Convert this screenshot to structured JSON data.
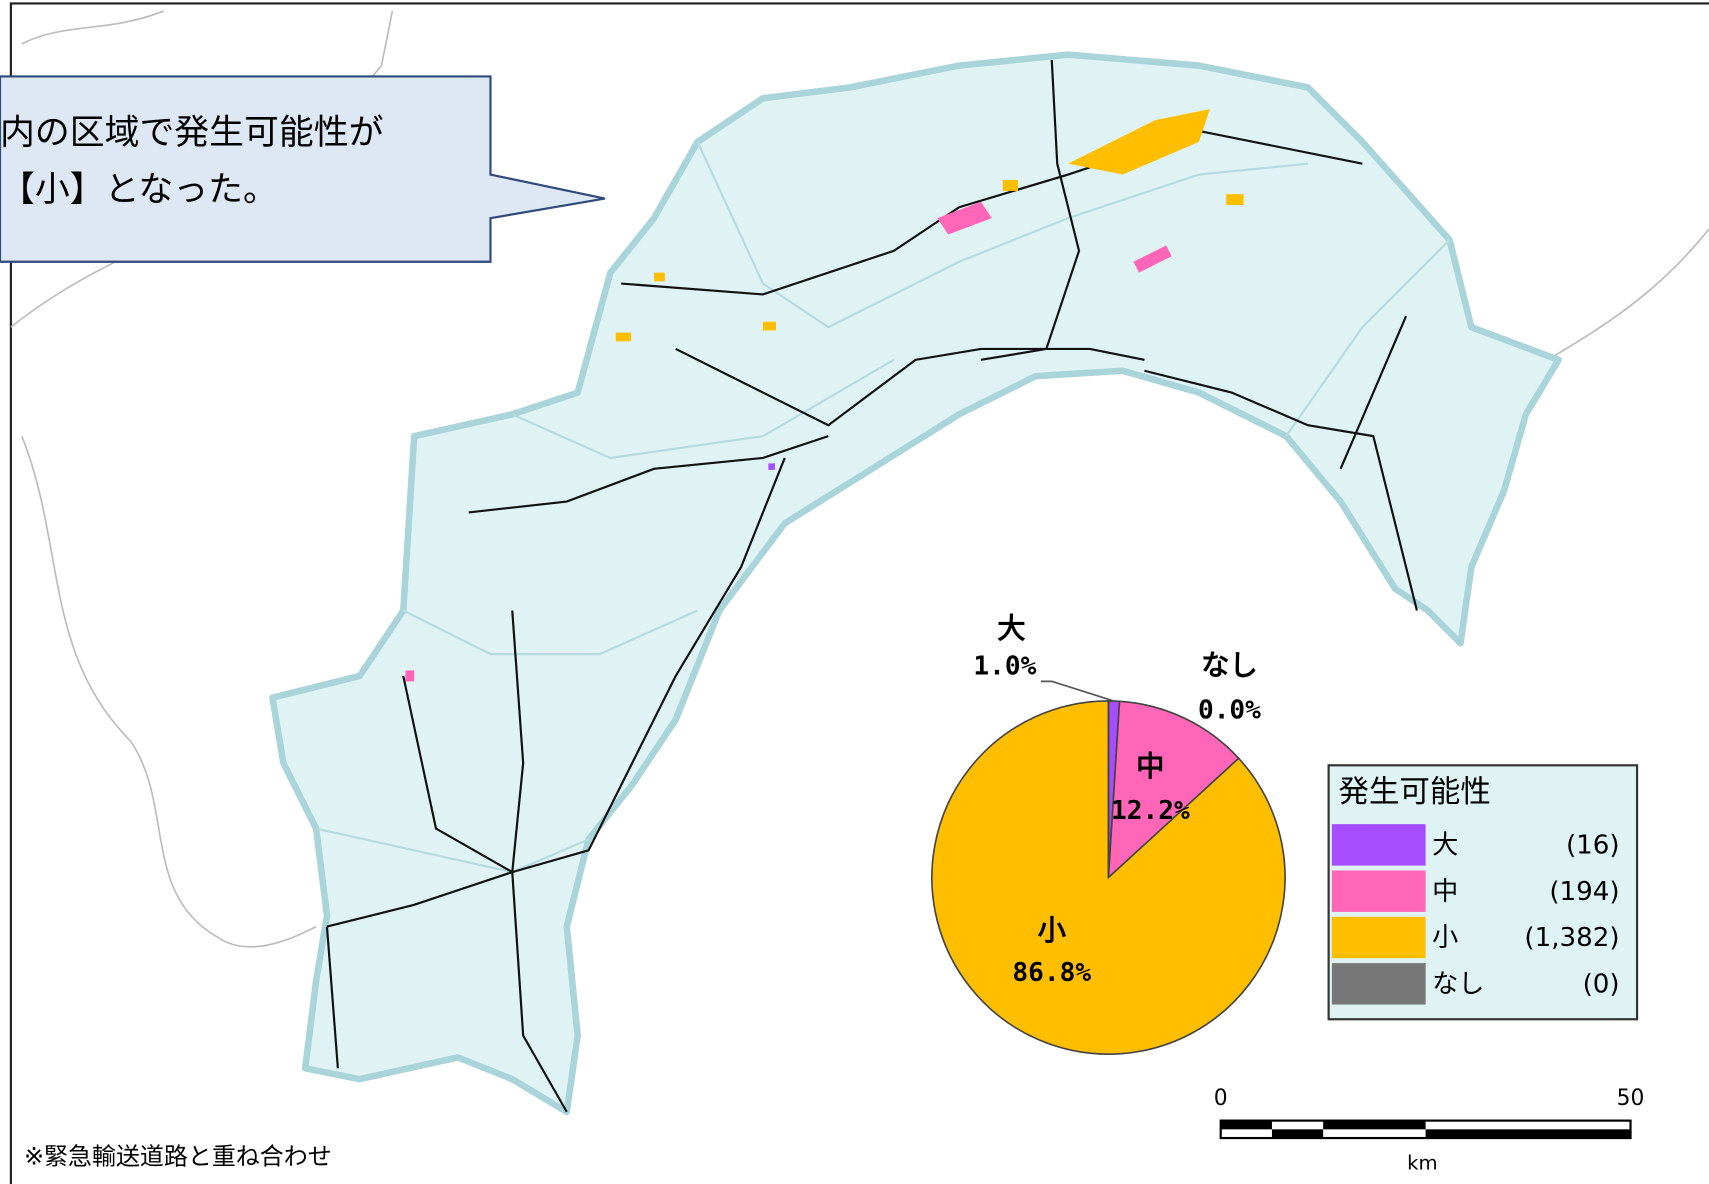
{
  "callout": [
    "内の区域で発生可能性が",
    "【小】となった。"
  ],
  "note": "※緊急輸送道路と重ね合わせ",
  "scale_bar": {
    "labels": [
      "0",
      "50"
    ],
    "unit": "km"
  },
  "chart_data": {
    "type": "pie",
    "categories": [
      "大",
      "中",
      "小",
      "なし"
    ],
    "values": [
      1.0,
      12.2,
      86.8,
      0.0
    ],
    "value_labels": [
      "1.0%",
      "12.2%",
      "86.8%",
      "0.0%"
    ],
    "colors": [
      "#a64dff",
      "#ff66b8",
      "#ffbf00",
      "#777777"
    ],
    "legend": {
      "title": "発生可能性",
      "counts": [
        "(16)",
        "(194)",
        "(1,382)",
        "(0)"
      ]
    }
  }
}
